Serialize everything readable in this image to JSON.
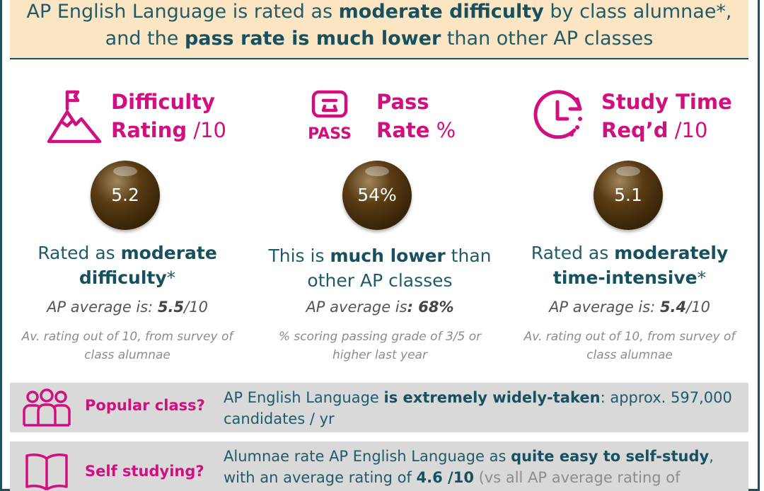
{
  "header": {
    "t1": "AP English Language is rated as ",
    "t2": "moderate difficulty",
    "t3": " by class alumnae*, and the ",
    "t4": "pass rate is much lower",
    "t5": " than other AP classes"
  },
  "metrics": [
    {
      "icon": "mountain-flag-icon",
      "title_line1": "Difficulty",
      "title_line2": "Rating",
      "title_unit": " /10",
      "value": "5.2",
      "summary_a": "Rated as ",
      "summary_b": "moderate difficulty",
      "summary_c": "*",
      "average_a": "AP average is: ",
      "average_b": "5.5",
      "average_c": "/10",
      "note": "Av. rating out of 10, from survey of class alumnae"
    },
    {
      "icon": "pass-certificate-icon",
      "title_line1": "Pass",
      "title_line2": "Rate",
      "title_unit": " %",
      "icon_label": "PASS",
      "value": "54%",
      "summary_a": "This is ",
      "summary_b": "much lower",
      "summary_c": " than other AP classes",
      "average_a": "AP average is",
      "average_b": ": 68%",
      "average_c": "",
      "note": "% scoring passing grade of 3/5 or higher last year"
    },
    {
      "icon": "clock-icon",
      "title_line1": "Study Time",
      "title_line2": "Req’d",
      "title_unit": " /10",
      "value": "5.1",
      "summary_a": "Rated as ",
      "summary_b": "moderately time-intensive",
      "summary_c": "*",
      "average_a": "AP average is: ",
      "average_b": "5.4",
      "average_c": "/10",
      "note": "Av. rating out of 10, from survey of class alumnae"
    }
  ],
  "popular": {
    "icon": "people-group-icon",
    "label": "Popular class?",
    "text_a": "AP English Language ",
    "text_b": "is extremely widely-taken",
    "text_c": ": approx. 597,000 candidates / yr"
  },
  "self_study": {
    "icon": "open-book-icon",
    "label": "Self studying?",
    "text_a": "Alumnae rate AP English Language as ",
    "text_b": "quite easy to self-study",
    "text_c": ", with an average rating of ",
    "text_d": "4.6 /10",
    "text_e": " (vs all AP average rating of"
  },
  "colors": {
    "accent_magenta": "#d10f7f",
    "text_teal": "#1f5b6a",
    "header_bg": "#fbe5c2",
    "band_bg": "#d9d9d9",
    "ball_brown": "#4a3210"
  }
}
